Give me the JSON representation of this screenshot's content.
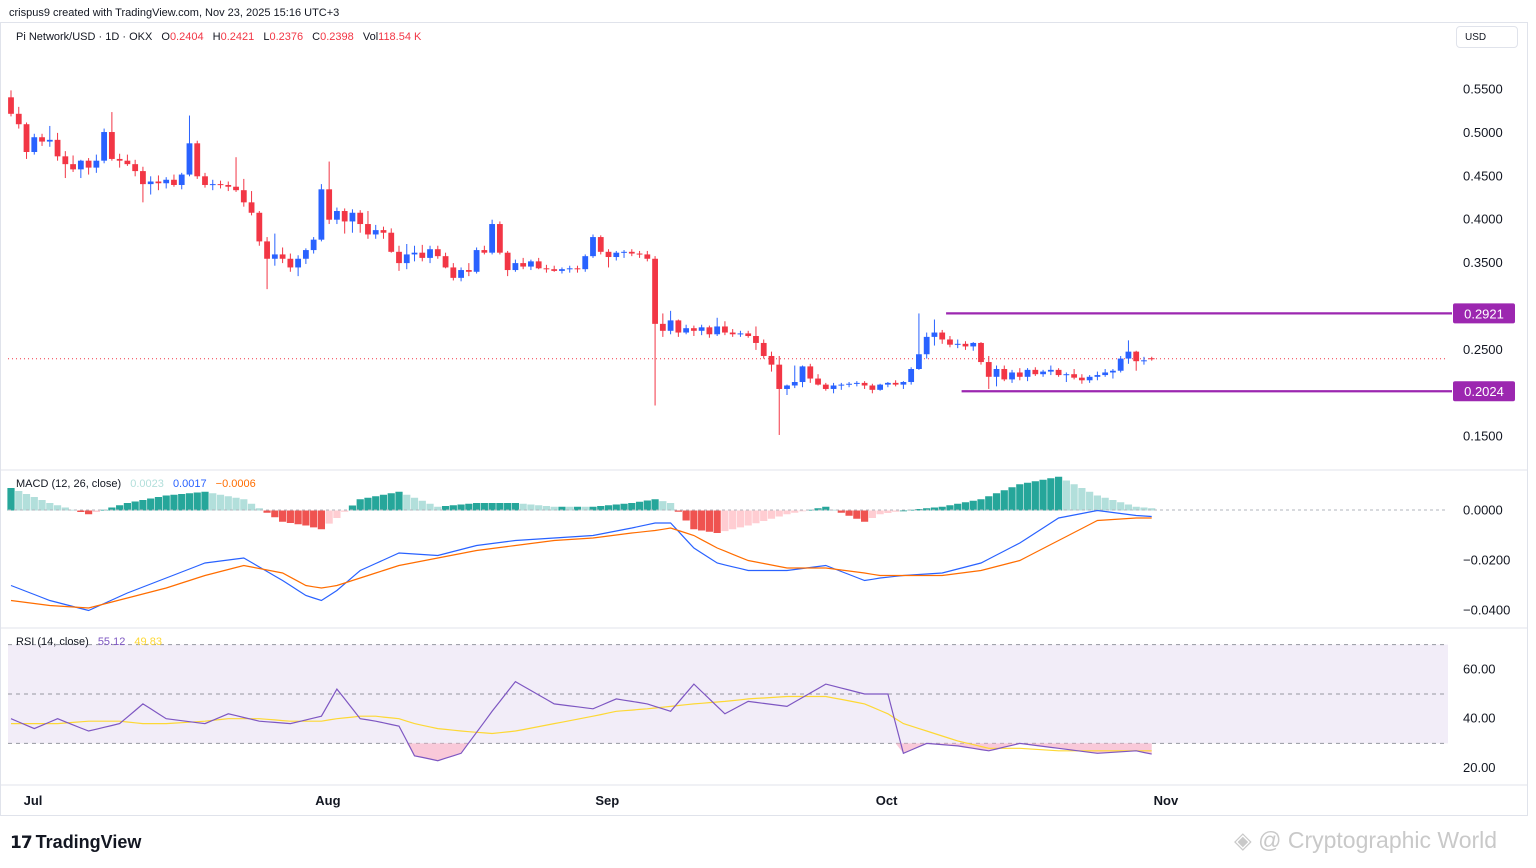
{
  "header": {
    "credit": "crispus9 created with TradingView.com, Nov 23, 2025 15:16 UTC+3",
    "symbol": "Pi Network/USD · 1D · OKX",
    "open_label": "O",
    "open": "0.2404",
    "high_label": "H",
    "high": "0.2421",
    "low_label": "L",
    "low": "0.2376",
    "close_label": "C",
    "close": "0.2398",
    "vol_label": "Vol",
    "vol": "118.54 K",
    "currency": "USD"
  },
  "footer": {
    "logo_text": "TradingView",
    "watermark": "@ Cryptographic World"
  },
  "colors": {
    "up": "#2962ff",
    "down": "#f23645",
    "level": "#9c27b0",
    "macd": "#2962ff",
    "signal": "#ff6d00",
    "hist_pos_strong": "#26a69a",
    "hist_pos_weak": "#b2dfdb",
    "hist_neg_strong": "#ef5350",
    "hist_neg_weak": "#ffcdd2",
    "rsi": "#7e57c2",
    "rsi_ma": "#fdd835",
    "rsi_band": "#ede7f6"
  },
  "chart_data": [
    {
      "type": "candlestick",
      "title": "Pi Network/USD · 1D · OKX",
      "x_axis_labels": [
        "Jul",
        "Aug",
        "Sep",
        "Oct",
        "Nov"
      ],
      "y_ticks": [
        0.55,
        0.5,
        0.45,
        0.4,
        0.35,
        0.25,
        0.15
      ],
      "y_tick_labels": [
        "0.5500",
        "0.5000",
        "0.4500",
        "0.4000",
        "0.3500",
        "0.2500",
        "0.1500"
      ],
      "ylim": [
        0.1,
        0.6
      ],
      "last_price": 0.2398,
      "horizontal_levels": [
        {
          "value": 0.2921,
          "label": "0.2921"
        },
        {
          "value": 0.2024,
          "label": "0.2024"
        }
      ],
      "candles": [
        [
          0.541,
          0.549,
          0.519,
          0.522
        ],
        [
          0.522,
          0.53,
          0.505,
          0.51
        ],
        [
          0.51,
          0.512,
          0.47,
          0.478
        ],
        [
          0.478,
          0.499,
          0.475,
          0.495
        ],
        [
          0.495,
          0.499,
          0.485,
          0.49
        ],
        [
          0.49,
          0.508,
          0.484,
          0.492
        ],
        [
          0.492,
          0.5,
          0.468,
          0.473
        ],
        [
          0.473,
          0.479,
          0.448,
          0.464
        ],
        [
          0.464,
          0.474,
          0.455,
          0.458
        ],
        [
          0.458,
          0.469,
          0.448,
          0.468
        ],
        [
          0.468,
          0.471,
          0.452,
          0.46
        ],
        [
          0.46,
          0.475,
          0.454,
          0.468
        ],
        [
          0.468,
          0.505,
          0.465,
          0.501
        ],
        [
          0.501,
          0.524,
          0.468,
          0.47
        ],
        [
          0.47,
          0.476,
          0.46,
          0.468
        ],
        [
          0.468,
          0.475,
          0.462,
          0.464
        ],
        [
          0.464,
          0.469,
          0.45,
          0.456
        ],
        [
          0.456,
          0.461,
          0.42,
          0.441
        ],
        [
          0.441,
          0.45,
          0.429,
          0.444
        ],
        [
          0.444,
          0.451,
          0.434,
          0.442
        ],
        [
          0.442,
          0.449,
          0.436,
          0.446
        ],
        [
          0.446,
          0.452,
          0.438,
          0.44
        ],
        [
          0.44,
          0.454,
          0.435,
          0.452
        ],
        [
          0.452,
          0.52,
          0.45,
          0.488
        ],
        [
          0.488,
          0.491,
          0.447,
          0.45
        ],
        [
          0.45,
          0.454,
          0.437,
          0.44
        ],
        [
          0.44,
          0.446,
          0.434,
          0.441
        ],
        [
          0.441,
          0.445,
          0.436,
          0.44
        ],
        [
          0.44,
          0.444,
          0.433,
          0.438
        ],
        [
          0.438,
          0.472,
          0.432,
          0.434
        ],
        [
          0.434,
          0.447,
          0.415,
          0.42
        ],
        [
          0.42,
          0.433,
          0.405,
          0.408
        ],
        [
          0.408,
          0.41,
          0.37,
          0.375
        ],
        [
          0.375,
          0.38,
          0.32,
          0.355
        ],
        [
          0.355,
          0.384,
          0.347,
          0.36
        ],
        [
          0.36,
          0.368,
          0.35,
          0.355
        ],
        [
          0.355,
          0.361,
          0.34,
          0.345
        ],
        [
          0.345,
          0.359,
          0.335,
          0.355
        ],
        [
          0.355,
          0.367,
          0.349,
          0.365
        ],
        [
          0.365,
          0.38,
          0.361,
          0.377
        ],
        [
          0.377,
          0.441,
          0.375,
          0.435
        ],
        [
          0.435,
          0.467,
          0.395,
          0.4
        ],
        [
          0.4,
          0.414,
          0.395,
          0.41
        ],
        [
          0.41,
          0.413,
          0.384,
          0.398
        ],
        [
          0.398,
          0.412,
          0.385,
          0.408
        ],
        [
          0.408,
          0.411,
          0.385,
          0.395
        ],
        [
          0.395,
          0.41,
          0.378,
          0.383
        ],
        [
          0.383,
          0.394,
          0.378,
          0.388
        ],
        [
          0.388,
          0.392,
          0.378,
          0.385
        ],
        [
          0.385,
          0.39,
          0.362,
          0.363
        ],
        [
          0.363,
          0.37,
          0.341,
          0.35
        ],
        [
          0.35,
          0.372,
          0.343,
          0.36
        ],
        [
          0.36,
          0.37,
          0.352,
          0.362
        ],
        [
          0.362,
          0.371,
          0.352,
          0.356
        ],
        [
          0.356,
          0.37,
          0.35,
          0.366
        ],
        [
          0.366,
          0.37,
          0.355,
          0.358
        ],
        [
          0.358,
          0.362,
          0.344,
          0.345
        ],
        [
          0.345,
          0.35,
          0.33,
          0.333
        ],
        [
          0.333,
          0.345,
          0.329,
          0.342
        ],
        [
          0.342,
          0.35,
          0.335,
          0.34
        ],
        [
          0.34,
          0.368,
          0.338,
          0.365
        ],
        [
          0.365,
          0.37,
          0.36,
          0.362
        ],
        [
          0.362,
          0.4,
          0.36,
          0.395
        ],
        [
          0.395,
          0.398,
          0.36,
          0.362
        ],
        [
          0.362,
          0.364,
          0.335,
          0.342
        ],
        [
          0.342,
          0.354,
          0.34,
          0.35
        ],
        [
          0.35,
          0.356,
          0.343,
          0.346
        ],
        [
          0.346,
          0.354,
          0.342,
          0.352
        ],
        [
          0.352,
          0.356,
          0.343,
          0.344
        ],
        [
          0.344,
          0.348,
          0.339,
          0.343
        ],
        [
          0.343,
          0.347,
          0.34,
          0.341
        ],
        [
          0.341,
          0.345,
          0.338,
          0.343
        ],
        [
          0.343,
          0.347,
          0.339,
          0.344
        ],
        [
          0.344,
          0.347,
          0.339,
          0.343
        ],
        [
          0.343,
          0.36,
          0.34,
          0.358
        ],
        [
          0.358,
          0.383,
          0.356,
          0.38
        ],
        [
          0.38,
          0.382,
          0.36,
          0.363
        ],
        [
          0.363,
          0.366,
          0.345,
          0.357
        ],
        [
          0.357,
          0.364,
          0.353,
          0.362
        ],
        [
          0.362,
          0.365,
          0.356,
          0.363
        ],
        [
          0.363,
          0.366,
          0.358,
          0.361
        ],
        [
          0.361,
          0.364,
          0.356,
          0.36
        ],
        [
          0.36,
          0.364,
          0.352,
          0.355
        ],
        [
          0.355,
          0.358,
          0.186,
          0.28
        ],
        [
          0.28,
          0.292,
          0.265,
          0.272
        ],
        [
          0.272,
          0.295,
          0.268,
          0.284
        ],
        [
          0.284,
          0.285,
          0.265,
          0.27
        ],
        [
          0.27,
          0.279,
          0.268,
          0.275
        ],
        [
          0.275,
          0.278,
          0.266,
          0.272
        ],
        [
          0.272,
          0.279,
          0.267,
          0.276
        ],
        [
          0.276,
          0.278,
          0.264,
          0.268
        ],
        [
          0.268,
          0.287,
          0.266,
          0.277
        ],
        [
          0.277,
          0.283,
          0.267,
          0.27
        ],
        [
          0.27,
          0.274,
          0.265,
          0.268
        ],
        [
          0.268,
          0.272,
          0.265,
          0.269
        ],
        [
          0.269,
          0.272,
          0.264,
          0.266
        ],
        [
          0.266,
          0.277,
          0.25,
          0.258
        ],
        [
          0.258,
          0.262,
          0.24,
          0.243
        ],
        [
          0.243,
          0.248,
          0.225,
          0.233
        ],
        [
          0.233,
          0.243,
          0.152,
          0.205
        ],
        [
          0.205,
          0.21,
          0.198,
          0.209
        ],
        [
          0.209,
          0.232,
          0.206,
          0.213
        ],
        [
          0.213,
          0.232,
          0.207,
          0.231
        ],
        [
          0.231,
          0.234,
          0.212,
          0.217
        ],
        [
          0.217,
          0.222,
          0.209,
          0.21
        ],
        [
          0.21,
          0.212,
          0.203,
          0.205
        ],
        [
          0.205,
          0.212,
          0.2,
          0.209
        ],
        [
          0.209,
          0.212,
          0.204,
          0.21
        ],
        [
          0.21,
          0.213,
          0.207,
          0.211
        ],
        [
          0.211,
          0.214,
          0.208,
          0.212
        ],
        [
          0.212,
          0.214,
          0.205,
          0.209
        ],
        [
          0.209,
          0.211,
          0.2,
          0.204
        ],
        [
          0.204,
          0.211,
          0.203,
          0.21
        ],
        [
          0.21,
          0.213,
          0.207,
          0.212
        ],
        [
          0.212,
          0.215,
          0.208,
          0.21
        ],
        [
          0.21,
          0.214,
          0.205,
          0.213
        ],
        [
          0.213,
          0.23,
          0.21,
          0.228
        ],
        [
          0.228,
          0.292,
          0.227,
          0.245
        ],
        [
          0.245,
          0.27,
          0.24,
          0.265
        ],
        [
          0.265,
          0.285,
          0.255,
          0.27
        ],
        [
          0.27,
          0.273,
          0.257,
          0.262
        ],
        [
          0.262,
          0.266,
          0.253,
          0.256
        ],
        [
          0.256,
          0.262,
          0.252,
          0.257
        ],
        [
          0.257,
          0.26,
          0.25,
          0.254
        ],
        [
          0.254,
          0.259,
          0.249,
          0.258
        ],
        [
          0.258,
          0.259,
          0.233,
          0.236
        ],
        [
          0.236,
          0.243,
          0.205,
          0.219
        ],
        [
          0.219,
          0.232,
          0.208,
          0.228
        ],
        [
          0.228,
          0.232,
          0.214,
          0.216
        ],
        [
          0.216,
          0.227,
          0.212,
          0.224
        ],
        [
          0.224,
          0.229,
          0.215,
          0.219
        ],
        [
          0.219,
          0.229,
          0.214,
          0.227
        ],
        [
          0.227,
          0.23,
          0.22,
          0.222
        ],
        [
          0.222,
          0.227,
          0.219,
          0.225
        ],
        [
          0.225,
          0.232,
          0.221,
          0.227
        ],
        [
          0.227,
          0.229,
          0.219,
          0.221
        ],
        [
          0.221,
          0.224,
          0.213,
          0.222
        ],
        [
          0.222,
          0.228,
          0.216,
          0.218
        ],
        [
          0.218,
          0.222,
          0.211,
          0.215
        ],
        [
          0.215,
          0.221,
          0.212,
          0.219
        ],
        [
          0.219,
          0.225,
          0.215,
          0.221
        ],
        [
          0.221,
          0.228,
          0.219,
          0.224
        ],
        [
          0.224,
          0.228,
          0.217,
          0.226
        ],
        [
          0.226,
          0.243,
          0.224,
          0.24
        ],
        [
          0.24,
          0.261,
          0.234,
          0.248
        ],
        [
          0.248,
          0.249,
          0.226,
          0.237
        ],
        [
          0.237,
          0.242,
          0.233,
          0.238
        ],
        [
          0.2404,
          0.2421,
          0.2376,
          0.2398
        ]
      ]
    },
    {
      "type": "macd",
      "title": "MACD (12, 26, close)",
      "legend_values": [
        "0.0023",
        "0.0017",
        "−0.0006"
      ],
      "y_tick_labels": [
        "0.0000",
        "−0.0200",
        "−0.0400"
      ],
      "y_ticks": [
        0,
        -0.02,
        -0.04
      ],
      "ylim": [
        -0.046,
        0.006
      ],
      "x_knots_day": [
        0,
        5,
        10,
        15,
        20,
        25,
        30,
        35,
        38,
        40,
        42,
        45,
        50,
        55,
        60,
        65,
        70,
        75,
        80,
        83,
        85,
        88,
        91,
        95,
        100,
        105,
        110,
        112,
        115,
        120,
        125,
        130,
        135,
        140,
        145,
        150,
        153,
        155,
        160,
        165,
        170,
        175,
        179
      ],
      "macd_knots": [
        -0.03,
        -0.036,
        -0.04,
        -0.033,
        -0.027,
        -0.021,
        -0.019,
        -0.028,
        -0.034,
        -0.036,
        -0.032,
        -0.024,
        -0.017,
        -0.018,
        -0.014,
        -0.012,
        -0.011,
        -0.01,
        -0.007,
        -0.005,
        -0.005,
        -0.015,
        -0.021,
        -0.024,
        -0.024,
        -0.022,
        -0.028,
        -0.027,
        -0.026,
        -0.025,
        -0.021,
        -0.013,
        -0.003,
        0.0,
        -0.002,
        -0.003,
        -0.003,
        -0.003,
        -0.003,
        -0.004,
        -0.003,
        -0.002,
        0.0017
      ],
      "signal_knots": [
        -0.036,
        -0.038,
        -0.039,
        -0.035,
        -0.031,
        -0.026,
        -0.022,
        -0.025,
        -0.03,
        -0.031,
        -0.03,
        -0.027,
        -0.022,
        -0.019,
        -0.016,
        -0.014,
        -0.012,
        -0.011,
        -0.009,
        -0.008,
        -0.007,
        -0.01,
        -0.015,
        -0.02,
        -0.023,
        -0.023,
        -0.025,
        -0.026,
        -0.026,
        -0.026,
        -0.024,
        -0.02,
        -0.012,
        -0.004,
        -0.003,
        -0.003,
        -0.003,
        -0.003,
        -0.003,
        -0.004,
        -0.003,
        -0.002,
        -0.0006
      ]
    },
    {
      "type": "rsi",
      "title": "RSI (14, close)",
      "legend_values": [
        "55.12",
        "49.83"
      ],
      "y_tick_labels": [
        "60.00",
        "40.00",
        "20.00"
      ],
      "y_ticks": [
        60,
        40,
        20
      ],
      "ylim": [
        10,
        70
      ],
      "bands": [
        70,
        50,
        30
      ],
      "x_knots_day": [
        0,
        3,
        6,
        10,
        14,
        17,
        20,
        25,
        28,
        32,
        36,
        40,
        42,
        45,
        47,
        50,
        52,
        55,
        58,
        62,
        65,
        70,
        75,
        78,
        82,
        85,
        88,
        92,
        95,
        100,
        105,
        110,
        113,
        115,
        118,
        122,
        126,
        130,
        135,
        140,
        145,
        148,
        150,
        153,
        156,
        159,
        162,
        165,
        168,
        172,
        175,
        178,
        179
      ],
      "rsi_knots": [
        40,
        36,
        40,
        35,
        38,
        46,
        40,
        38,
        42,
        39,
        38,
        41,
        52,
        40,
        39,
        37,
        25,
        23,
        26,
        43,
        55,
        46,
        44,
        48,
        46,
        43,
        54,
        42,
        47,
        45,
        54,
        50,
        50,
        26,
        30,
        29,
        27,
        30,
        28,
        26,
        27,
        25,
        34,
        42,
        58,
        62,
        57,
        60,
        44,
        48,
        45,
        58,
        55
      ],
      "ma_knots": [
        38,
        38,
        38,
        39,
        39,
        38,
        38,
        39,
        40,
        40,
        39,
        39,
        40,
        41,
        41,
        40,
        38,
        36,
        35,
        34,
        35,
        38,
        41,
        43,
        44,
        45,
        46,
        47,
        48,
        49,
        49,
        46,
        42,
        38,
        35,
        31,
        28,
        28,
        27,
        27,
        27,
        27,
        30,
        35,
        43,
        46,
        51,
        52,
        51,
        48,
        49,
        50,
        50
      ]
    }
  ]
}
